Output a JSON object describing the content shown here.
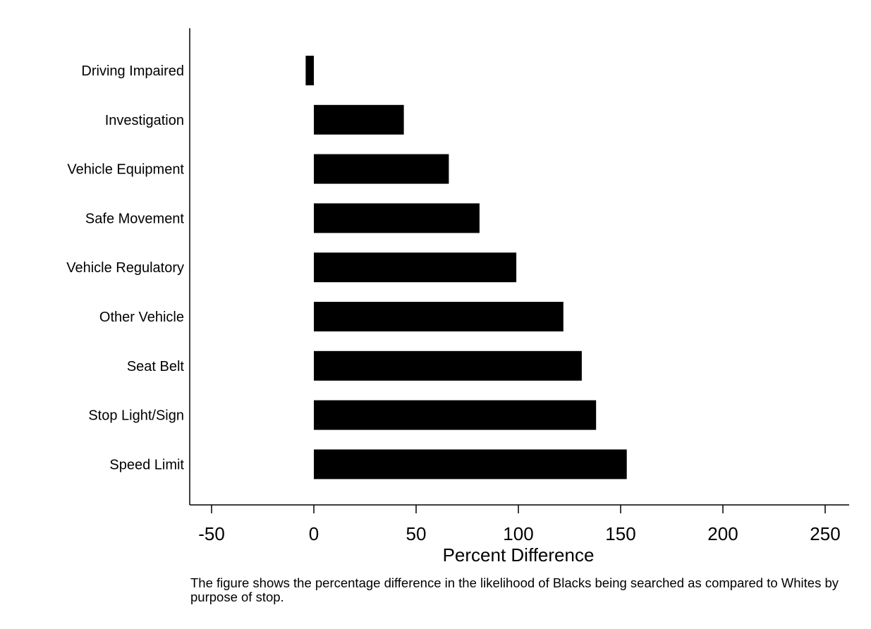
{
  "chart_data": {
    "type": "bar",
    "orientation": "horizontal",
    "categories": [
      "Driving Impaired",
      "Investigation",
      "Vehicle Equipment",
      "Safe Movement",
      "Vehicle Regulatory",
      "Other Vehicle",
      "Seat Belt",
      "Stop Light/Sign",
      "Speed Limit"
    ],
    "values": [
      -4,
      44,
      66,
      81,
      99,
      122,
      131,
      138,
      153
    ],
    "xlabel": "Percent Difference",
    "ylabel": "",
    "xlim": [
      -50,
      250
    ],
    "xticks": [
      -50,
      0,
      50,
      100,
      150,
      200,
      250
    ],
    "grid": false,
    "bar_color": "#000000"
  },
  "caption": "The figure shows the percentage difference in the likelihood of Blacks being searched as compared to Whites by purpose of stop."
}
